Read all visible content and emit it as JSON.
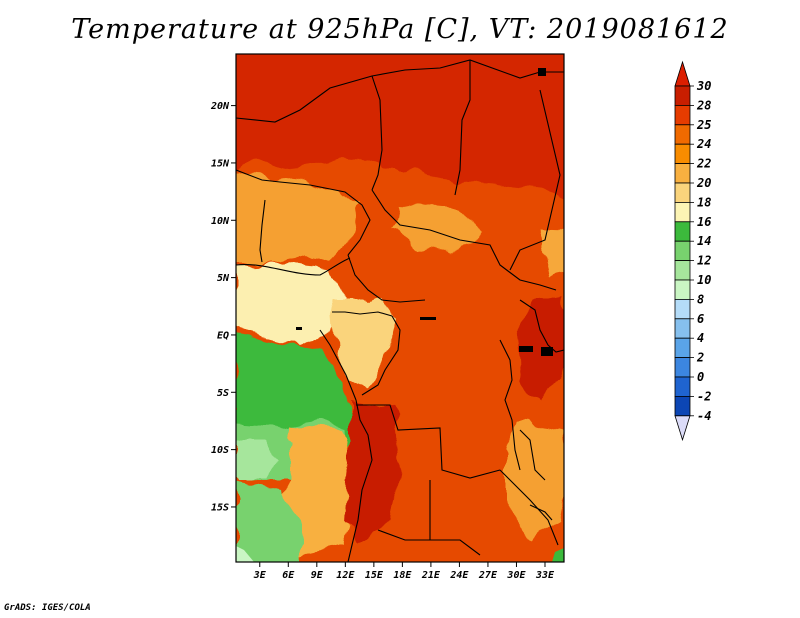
{
  "title": "Temperature at 925hPa [C], VT: 2019081612",
  "credit": "GrADS: IGES/COLA",
  "map": {
    "lat_labels": [
      {
        "label": "20N",
        "lat": 20
      },
      {
        "label": "15N",
        "lat": 15
      },
      {
        "label": "10N",
        "lat": 10
      },
      {
        "label": "5N",
        "lat": 5
      },
      {
        "label": "EQ",
        "lat": 0
      },
      {
        "label": "5S",
        "lat": -5
      },
      {
        "label": "10S",
        "lat": -10
      },
      {
        "label": "15S",
        "lat": -15
      }
    ],
    "lon_labels": [
      {
        "label": "3E",
        "lon": 3
      },
      {
        "label": "6E",
        "lon": 6
      },
      {
        "label": "9E",
        "lon": 9
      },
      {
        "label": "12E",
        "lon": 12
      },
      {
        "label": "15E",
        "lon": 15
      },
      {
        "label": "18E",
        "lon": 18
      },
      {
        "label": "21E",
        "lon": 21
      },
      {
        "label": "24E",
        "lon": 24
      },
      {
        "label": "27E",
        "lon": 27
      },
      {
        "label": "30E",
        "lon": 30
      },
      {
        "label": "33E",
        "lon": 33
      }
    ],
    "lon_range": [
      0.5,
      35
    ],
    "lat_range": [
      -19.8,
      24.5
    ]
  },
  "colorbar": {
    "levels": [
      "30",
      "28",
      "25",
      "24",
      "22",
      "20",
      "18",
      "16",
      "14",
      "12",
      "10",
      "8",
      "6",
      "4",
      "2",
      "0",
      "-2",
      "-4"
    ],
    "colors": [
      "#c81e00",
      "#e63c00",
      "#f06a00",
      "#f88c00",
      "#f8b040",
      "#fad47c",
      "#fcf4b4",
      "#3cba3c",
      "#78d26e",
      "#a6e69c",
      "#caf6c4",
      "#b4dcf8",
      "#86c0ee",
      "#5aa4e8",
      "#3c86e0",
      "#1f64d0",
      "#0c46b4",
      "#101478"
    ],
    "top_color": "#dc1e00",
    "bottom_color": "#dcdcf8"
  }
}
